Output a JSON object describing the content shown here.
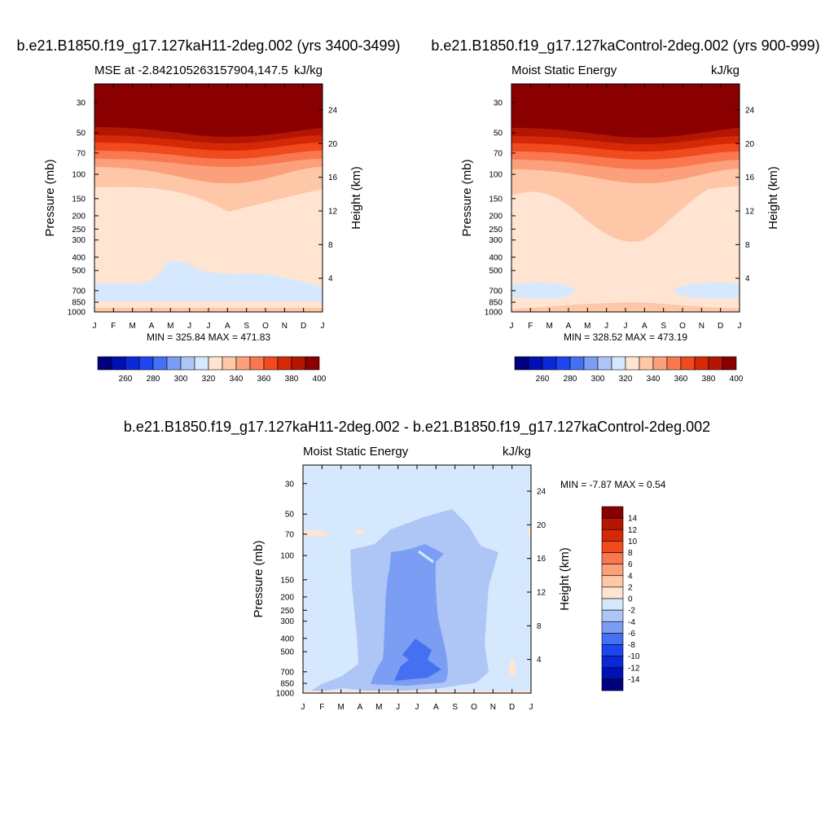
{
  "chart_data": [
    {
      "type": "heatmap",
      "title": "b.e21.B1850.f19_g17.127kaH11-2deg.002 (yrs 3400-3499)",
      "left_string": "MSE at -2.842105263157904,147.5",
      "right_string": "kJ/kg",
      "ylabel": "Pressure (mb)",
      "y2label": "Height (km)",
      "months": [
        "J",
        "F",
        "M",
        "A",
        "M",
        "J",
        "J",
        "A",
        "S",
        "O",
        "N",
        "D",
        "J"
      ],
      "pressure_ticks": [
        30,
        50,
        70,
        100,
        150,
        200,
        250,
        300,
        400,
        500,
        700,
        850,
        1000
      ],
      "height_ticks": [
        4,
        8,
        12,
        16,
        20,
        24
      ],
      "stats_label": "MIN = 325.84 MAX = 471.83",
      "min": 325.84,
      "max": 471.83,
      "levels": [
        250,
        260,
        270,
        280,
        290,
        300,
        310,
        320,
        330,
        340,
        350,
        360,
        370,
        380,
        390,
        400
      ],
      "colorbar_labels": [
        "260",
        "280",
        "300",
        "320",
        "340",
        "360",
        "380",
        "400"
      ]
    },
    {
      "type": "heatmap",
      "title": "b.e21.B1850.f19_g17.127kaControl-2deg.002 (yrs 900-999)",
      "left_string": "Moist Static Energy",
      "right_string": "kJ/kg",
      "ylabel": "Pressure (mb)",
      "y2label": "Height (km)",
      "months": [
        "J",
        "F",
        "M",
        "A",
        "M",
        "J",
        "J",
        "A",
        "S",
        "O",
        "N",
        "D",
        "J"
      ],
      "pressure_ticks": [
        30,
        50,
        70,
        100,
        150,
        200,
        250,
        300,
        400,
        500,
        700,
        850,
        1000
      ],
      "height_ticks": [
        4,
        8,
        12,
        16,
        20,
        24
      ],
      "stats_label": "MIN = 328.52 MAX = 473.19",
      "min": 328.52,
      "max": 473.19,
      "levels": [
        250,
        260,
        270,
        280,
        290,
        300,
        310,
        320,
        330,
        340,
        350,
        360,
        370,
        380,
        390,
        400
      ],
      "colorbar_labels": [
        "260",
        "280",
        "300",
        "320",
        "340",
        "360",
        "380",
        "400"
      ]
    },
    {
      "type": "heatmap",
      "title": "b.e21.B1850.f19_g17.127kaH11-2deg.002 - b.e21.B1850.f19_g17.127kaControl-2deg.002",
      "left_string": "Moist Static Energy",
      "right_string": "kJ/kg",
      "ylabel": "Pressure (mb)",
      "y2label": "Height (km)",
      "months": [
        "J",
        "F",
        "M",
        "A",
        "M",
        "J",
        "J",
        "A",
        "S",
        "O",
        "N",
        "D",
        "J"
      ],
      "pressure_ticks": [
        30,
        50,
        70,
        100,
        150,
        200,
        250,
        300,
        400,
        500,
        700,
        850,
        1000
      ],
      "height_ticks": [
        4,
        8,
        12,
        16,
        20,
        24
      ],
      "stats_label": "MIN =  -7.87 MAX =   0.54",
      "min": -7.87,
      "max": 0.54,
      "levels": [
        -14,
        -12,
        -10,
        -8,
        -6,
        -4,
        -2,
        0,
        2,
        4,
        6,
        8,
        10,
        12,
        14
      ],
      "colorbar_labels": [
        "14",
        "12",
        "10",
        "8",
        "6",
        "4",
        "2",
        "0",
        "-2",
        "-4",
        "-6",
        "-8",
        "-10",
        "-12",
        "-14"
      ]
    }
  ],
  "colors": {
    "full_palette": [
      "#00007f",
      "#0010b2",
      "#0a28d8",
      "#1e46f0",
      "#4570f2",
      "#7b9df3",
      "#aec6f6",
      "#d6e8fd",
      "#ffe4d2",
      "#fdc7a8",
      "#fba07a",
      "#f9784f",
      "#f04a1e",
      "#d42806",
      "#b31602",
      "#8a0000"
    ],
    "diff_palette": [
      "#8a0000",
      "#b31602",
      "#d42806",
      "#f04a1e",
      "#f9784f",
      "#fba07a",
      "#fdc7a8",
      "#ffe4d2",
      "#d6e8fd",
      "#aec6f6",
      "#7b9df3",
      "#4570f2",
      "#1e46f0",
      "#0a28d8",
      "#0010b2",
      "#00007f"
    ]
  }
}
